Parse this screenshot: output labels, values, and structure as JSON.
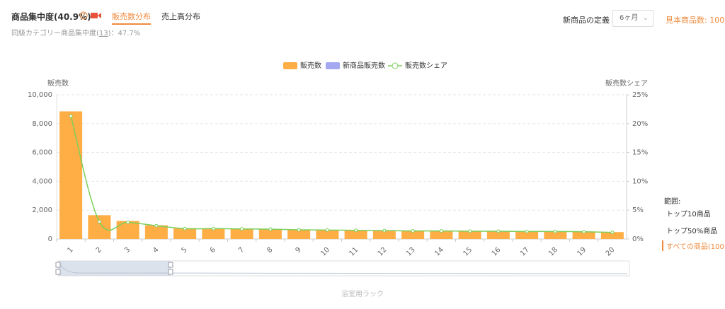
{
  "header": {
    "title": "商品集中度(40.9%)",
    "tabs": [
      "販売数分布",
      "売上高分布"
    ],
    "compare_label": "同級カテゴリー商品集中度(",
    "compare_link": "13",
    "compare_value": ")：47.7%",
    "new_def_label": "新商品の定義",
    "new_def_select": "6ヶ月",
    "sample_count": "見本商品数: 100"
  },
  "range": {
    "title": "範囲:",
    "options": [
      "トップ10商品",
      "トップ50%商品",
      "すべての商品(100)"
    ]
  },
  "chart_data": {
    "type": "bar",
    "x_label": "浴室用ラック",
    "y_label": "販売数",
    "y2_label": "販売数シェア",
    "categories": [
      "1",
      "2",
      "3",
      "4",
      "5",
      "6",
      "7",
      "8",
      "9",
      "10",
      "11",
      "12",
      "13",
      "14",
      "15",
      "16",
      "17",
      "18",
      "19",
      "20"
    ],
    "series": [
      {
        "name": "販売数",
        "color": "#ffad45",
        "type": "bar",
        "values": [
          8850,
          1650,
          1250,
          950,
          750,
          720,
          700,
          680,
          650,
          630,
          620,
          600,
          590,
          580,
          570,
          560,
          550,
          540,
          520,
          480
        ]
      },
      {
        "name": "新商品販売数",
        "color": "#a3a8f0",
        "type": "bar",
        "values": [
          0,
          0,
          0,
          0,
          0,
          0,
          0,
          0,
          0,
          0,
          0,
          0,
          0,
          0,
          0,
          0,
          0,
          0,
          0,
          0
        ]
      },
      {
        "name": "販売数シェア",
        "color": "#7ccf5b",
        "type": "line",
        "axis": "y2",
        "values": [
          21.3,
          3.0,
          2.9,
          2.3,
          1.8,
          1.8,
          1.75,
          1.7,
          1.6,
          1.55,
          1.5,
          1.45,
          1.4,
          1.4,
          1.35,
          1.35,
          1.3,
          1.3,
          1.25,
          1.15
        ]
      }
    ],
    "ylim": [
      0,
      10000
    ],
    "yticks": [
      0,
      {
        "value": 2000,
        "label": "2,000"
      },
      {
        "value": 4000,
        "label": "4,000"
      },
      {
        "value": 6000,
        "label": "6,000"
      },
      {
        "value": 8000,
        "label": "8,000"
      },
      {
        "value": 10000,
        "label": "10,000"
      }
    ],
    "y2lim": [
      0,
      25
    ],
    "y2ticks": [
      {
        "value": 0,
        "label": "0%"
      },
      {
        "value": 5,
        "label": "5%"
      },
      {
        "value": 10,
        "label": "10%"
      },
      {
        "value": 15,
        "label": "15%"
      },
      {
        "value": 20,
        "label": "20%"
      },
      {
        "value": 25,
        "label": "25%"
      }
    ],
    "grid": true,
    "legend": "top"
  }
}
